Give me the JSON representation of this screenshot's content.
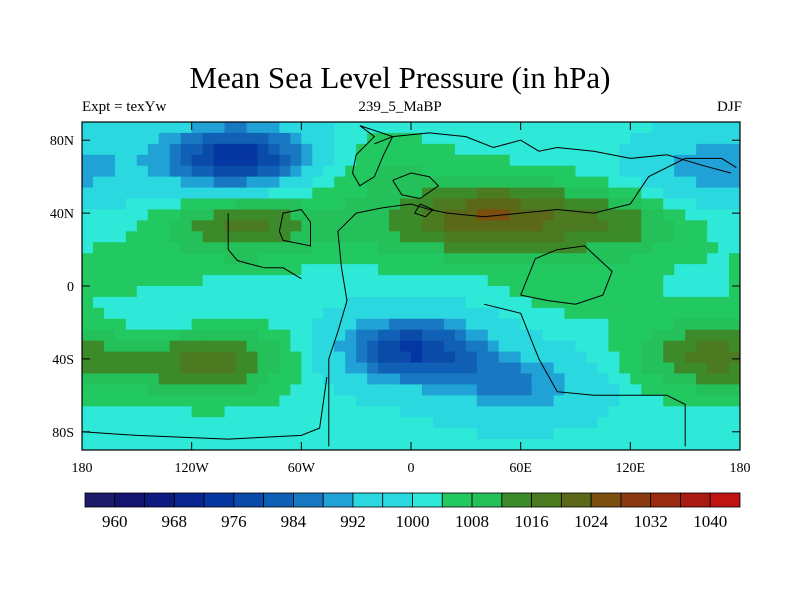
{
  "title": "Mean Sea Level Pressure (in hPa)",
  "subtitle_left": "Expt = texYw",
  "subtitle_center": "239_5_MaBP",
  "subtitle_right": "DJF",
  "chart_data": {
    "type": "heatmap",
    "variable": "Mean sea level pressure",
    "units": "hPa",
    "season": "DJF",
    "xlim": [
      -180,
      180
    ],
    "ylim": [
      -90,
      90
    ],
    "x_ticks": [
      {
        "value": -180,
        "label": "180"
      },
      {
        "value": -120,
        "label": "120W"
      },
      {
        "value": -60,
        "label": "60W"
      },
      {
        "value": 0,
        "label": "0"
      },
      {
        "value": 60,
        "label": "60E"
      },
      {
        "value": 120,
        "label": "120E"
      },
      {
        "value": 180,
        "label": "180"
      }
    ],
    "y_ticks": [
      {
        "value": 80,
        "label": "80N"
      },
      {
        "value": 40,
        "label": "40N"
      },
      {
        "value": 0,
        "label": "0"
      },
      {
        "value": -40,
        "label": "40S"
      },
      {
        "value": -80,
        "label": "80S"
      }
    ],
    "colorbar": {
      "levels": [
        956,
        960,
        964,
        968,
        972,
        976,
        980,
        984,
        988,
        992,
        996,
        1000,
        1004,
        1008,
        1012,
        1016,
        1020,
        1024,
        1028,
        1032,
        1036,
        1040,
        1044
      ],
      "labels": [
        {
          "value": 960,
          "label": "960"
        },
        {
          "value": 968,
          "label": "968"
        },
        {
          "value": 976,
          "label": "976"
        },
        {
          "value": 984,
          "label": "984"
        },
        {
          "value": 992,
          "label": "992"
        },
        {
          "value": 1000,
          "label": "1000"
        },
        {
          "value": 1008,
          "label": "1008"
        },
        {
          "value": 1016,
          "label": "1016"
        },
        {
          "value": 1024,
          "label": "1024"
        },
        {
          "value": 1032,
          "label": "1032"
        },
        {
          "value": 1040,
          "label": "1040"
        }
      ],
      "colors": [
        "#1c1a6a",
        "#121470",
        "#0e1a80",
        "#0a2590",
        "#0636a2",
        "#0a4aa8",
        "#1060b5",
        "#1878c2",
        "#20a2d6",
        "#2bd8e0",
        "#2bd8e0",
        "#2ee8d8",
        "#22c860",
        "#24c05a",
        "#3c8a2a",
        "#4c7a20",
        "#5a6818",
        "#7a4f10",
        "#8a3a10",
        "#9a2a12",
        "#a81c14",
        "#c01414"
      ]
    },
    "features": [
      {
        "type": "low",
        "lon": -95,
        "lat": 70,
        "value": 972
      },
      {
        "type": "low",
        "lon": 165,
        "lat": 65,
        "value": 988
      },
      {
        "type": "low",
        "lon": 0,
        "lat": -35,
        "value": 976
      },
      {
        "type": "low",
        "lon": 60,
        "lat": -55,
        "value": 988
      },
      {
        "type": "low",
        "lon": -130,
        "lat": -22,
        "value": 996
      },
      {
        "type": "high",
        "lon": 45,
        "lat": 38,
        "value": 1022
      },
      {
        "type": "high",
        "lon": -90,
        "lat": 35,
        "value": 1018
      },
      {
        "type": "high",
        "lon": -110,
        "lat": -40,
        "value": 1020
      },
      {
        "type": "high",
        "lon": 165,
        "lat": -38,
        "value": 1018
      },
      {
        "type": "high",
        "lon": -20,
        "lat": 65,
        "value": 1008
      },
      {
        "type": "high",
        "lon": 110,
        "lat": 35,
        "value": 1014
      },
      {
        "type": "high",
        "lon": -150,
        "lat": 5,
        "value": 1006
      },
      {
        "type": "high",
        "lon": 90,
        "lat": 0,
        "value": 1006
      },
      {
        "type": "high",
        "lon": -5,
        "lat": 30,
        "value": 1008
      }
    ],
    "base_value": 1002,
    "coastline_color": "#000000"
  }
}
